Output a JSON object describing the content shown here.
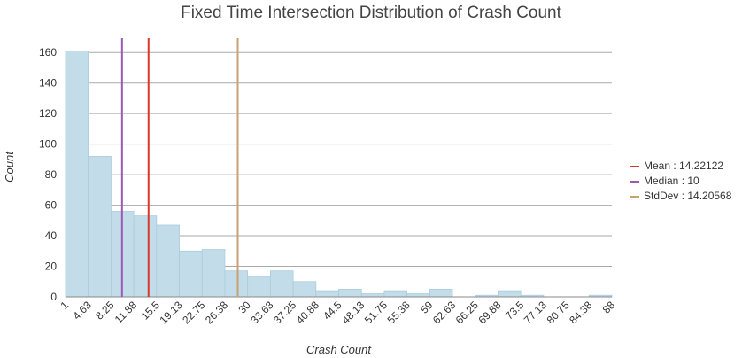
{
  "chart_data": {
    "type": "bar",
    "title": "Fixed Time Intersection Distribution of Crash Count",
    "xlabel": "Crash Count",
    "ylabel": "Count",
    "ylim": [
      0,
      170
    ],
    "yticks": [
      0,
      20,
      40,
      60,
      80,
      100,
      120,
      140,
      160
    ],
    "grid": true,
    "legend_position": "right",
    "xticks": [
      "1",
      "4.63",
      "8.25",
      "11.88",
      "15.5",
      "19.13",
      "22.75",
      "26.38",
      "30",
      "33.63",
      "37.25",
      "40.88",
      "44.5",
      "48.13",
      "51.75",
      "55.38",
      "59",
      "62.63",
      "66.25",
      "69.88",
      "73.5",
      "77.13",
      "80.75",
      "84.38",
      "88"
    ],
    "bin_edges": [
      1,
      4.63,
      8.25,
      11.88,
      15.5,
      19.13,
      22.75,
      26.38,
      30,
      33.63,
      37.25,
      40.88,
      44.5,
      48.13,
      51.75,
      55.38,
      59,
      62.63,
      66.25,
      69.88,
      73.5,
      77.13,
      80.75,
      84.38,
      88
    ],
    "values": [
      161,
      92,
      56,
      53,
      47,
      30,
      31,
      17,
      13,
      17,
      10,
      4,
      5,
      2,
      4,
      2,
      5,
      0,
      1,
      4,
      1,
      0,
      0,
      1
    ],
    "bar_color": "#c2dde9",
    "lines": [
      {
        "label": "Mean : 14.22122",
        "value": 14.22122,
        "color": "#d93829"
      },
      {
        "label": "Median : 10",
        "value": 10,
        "color": "#9b59b6"
      },
      {
        "label": "StdDev : 14.20568",
        "value": 28.4269,
        "color": "#c8a273"
      }
    ]
  }
}
